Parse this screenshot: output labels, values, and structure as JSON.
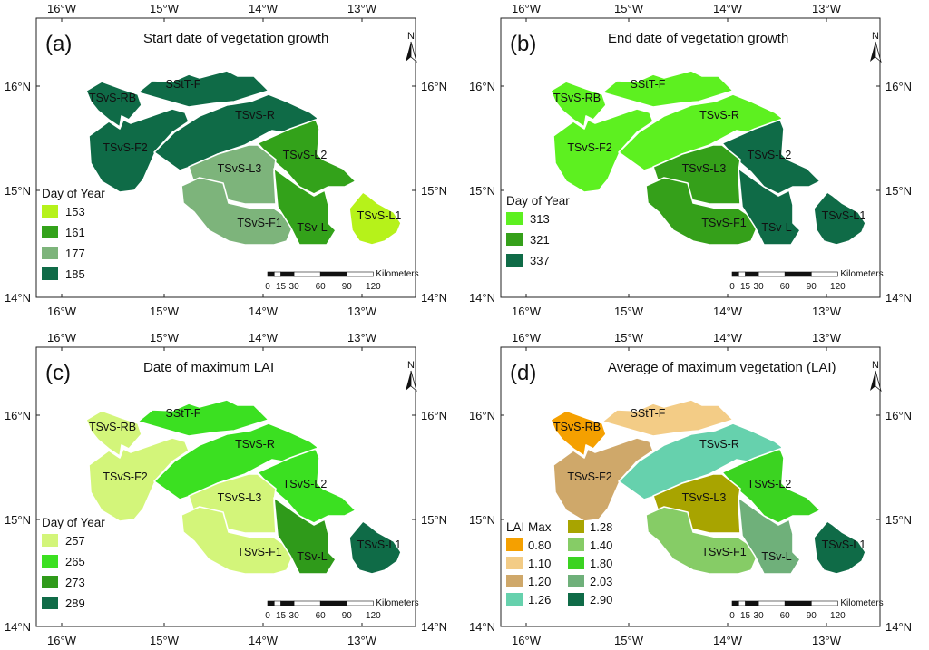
{
  "figure": {
    "panels": [
      {
        "tag": "(a)",
        "title": "Start date of vegetation growth",
        "legend_title": "Day of Year",
        "legend": [
          {
            "label": "153",
            "color": "#b6f21a"
          },
          {
            "label": "161",
            "color": "#33a21a"
          },
          {
            "label": "177",
            "color": "#7db47b"
          },
          {
            "label": "185",
            "color": "#0f6b47"
          }
        ],
        "zones": {
          "SStT-F": "#0f6b47",
          "TSvS-RB": "#0f6b47",
          "TSvS-F2": "#0f6b47",
          "TSvS-R": "#0f6b47",
          "TSvS-L2": "#33a21a",
          "TSvS-L3": "#7db47b",
          "TSvS-F1": "#7db47b",
          "TSv-L": "#33a21a",
          "TSvS-L1": "#b6f21a"
        }
      },
      {
        "tag": "(b)",
        "title": "End date of vegetation growth",
        "legend_title": "Day of Year",
        "legend": [
          {
            "label": "313",
            "color": "#5df020"
          },
          {
            "label": "321",
            "color": "#35a01a"
          },
          {
            "label": "337",
            "color": "#0f6b47"
          }
        ],
        "zones": {
          "SStT-F": "#5df020",
          "TSvS-RB": "#5df020",
          "TSvS-F2": "#5df020",
          "TSvS-R": "#5df020",
          "TSvS-L2": "#0f6b47",
          "TSvS-L3": "#35a01a",
          "TSvS-F1": "#35a01a",
          "TSv-L": "#0f6b47",
          "TSvS-L1": "#0f6b47"
        }
      },
      {
        "tag": "(c)",
        "title": "Date of maximum LAI",
        "legend_title": "Day of Year",
        "legend": [
          {
            "label": "257",
            "color": "#d3f57a"
          },
          {
            "label": "265",
            "color": "#3be021"
          },
          {
            "label": "273",
            "color": "#2f9a1a"
          },
          {
            "label": "289",
            "color": "#0f6b47"
          }
        ],
        "zones": {
          "SStT-F": "#3be021",
          "TSvS-RB": "#d3f57a",
          "TSvS-F2": "#d3f57a",
          "TSvS-R": "#3be021",
          "TSvS-L2": "#3be021",
          "TSvS-L3": "#d3f57a",
          "TSvS-F1": "#d3f57a",
          "TSv-L": "#2f9a1a",
          "TSvS-L1": "#0f6b47"
        }
      },
      {
        "tag": "(d)",
        "title": "Average of maximum vegetation (LAI)",
        "legend_title": "LAI Max",
        "legend": [
          {
            "label": "0.80",
            "color": "#f5a000"
          },
          {
            "label": "1.10",
            "color": "#f3cc86"
          },
          {
            "label": "1.20",
            "color": "#cfa86a"
          },
          {
            "label": "1.26",
            "color": "#66d1ad"
          },
          {
            "label": "1.28",
            "color": "#a8a400"
          },
          {
            "label": "1.40",
            "color": "#86cc66"
          },
          {
            "label": "1.80",
            "color": "#3bd321"
          },
          {
            "label": "2.03",
            "color": "#6fb07a"
          },
          {
            "label": "2.90",
            "color": "#0f6b47"
          }
        ],
        "zones": {
          "SStT-F": "#f3cc86",
          "TSvS-RB": "#f5a000",
          "TSvS-F2": "#cfa86a",
          "TSvS-R": "#66d1ad",
          "TSvS-L2": "#3bd321",
          "TSvS-L3": "#a8a400",
          "TSvS-F1": "#86cc66",
          "TSv-L": "#6fb07a",
          "TSvS-L1": "#0f6b47"
        }
      }
    ],
    "zone_labels": [
      "SStT-F",
      "TSvS-RB",
      "TSvS-F2",
      "TSvS-R",
      "TSvS-L2",
      "TSvS-L3",
      "TSvS-F1",
      "TSv-L",
      "TSvS-L1"
    ],
    "lon_ticks": [
      "16°W",
      "15°W",
      "14°W",
      "13°W"
    ],
    "lat_ticks": [
      "16°N",
      "15°N",
      "14°N"
    ],
    "north_label": "N",
    "scalebar": {
      "unit": "Kilometers",
      "ticks": [
        "0",
        "15",
        "30",
        "60",
        "90",
        "120"
      ]
    }
  }
}
